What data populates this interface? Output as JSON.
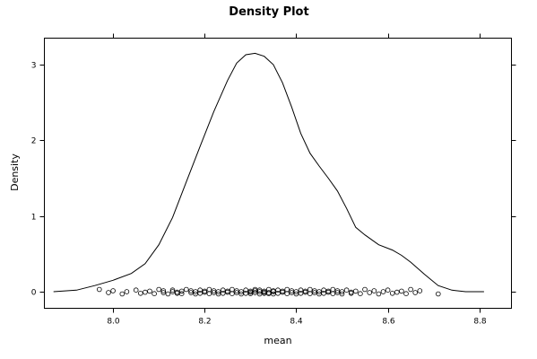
{
  "chart_data": {
    "type": "line",
    "title": "Density Plot",
    "xlabel": "mean",
    "ylabel": "Density",
    "xlim": [
      7.85,
      8.87
    ],
    "ylim": [
      -0.22,
      3.35
    ],
    "x_ticks": [
      8.0,
      8.2,
      8.4,
      8.6,
      8.8
    ],
    "x_tick_labels": [
      "8.0",
      "8.2",
      "8.4",
      "8.6",
      "8.8"
    ],
    "y_ticks": [
      0,
      1,
      2,
      3
    ],
    "y_tick_labels": [
      "0",
      "1",
      "2",
      "3"
    ],
    "grid": false,
    "series": [
      {
        "x": [
          7.87,
          7.92,
          7.96,
          8.0,
          8.04,
          8.07,
          8.1,
          8.13,
          8.16,
          8.19,
          8.22,
          8.25,
          8.27,
          8.29,
          8.31,
          8.33,
          8.35,
          8.37,
          8.39,
          8.41,
          8.43,
          8.45,
          8.47,
          8.49,
          8.51,
          8.53,
          8.55,
          8.58,
          8.61,
          8.63,
          8.65,
          8.68,
          8.71,
          8.74,
          8.77,
          8.81
        ],
        "y": [
          0.0,
          0.02,
          0.08,
          0.15,
          0.24,
          0.37,
          0.62,
          0.98,
          1.45,
          1.92,
          2.38,
          2.79,
          3.02,
          3.13,
          3.15,
          3.11,
          3.0,
          2.76,
          2.44,
          2.09,
          1.83,
          1.66,
          1.5,
          1.33,
          1.1,
          0.85,
          0.75,
          0.62,
          0.55,
          0.48,
          0.39,
          0.23,
          0.08,
          0.02,
          0.0,
          0.0
        ]
      }
    ],
    "rug_points": [
      7.97,
      7.99,
      8.0,
      8.02,
      8.03,
      8.05,
      8.06,
      8.07,
      8.08,
      8.09,
      8.1,
      8.11,
      8.11,
      8.12,
      8.13,
      8.13,
      8.14,
      8.14,
      8.15,
      8.15,
      8.16,
      8.17,
      8.17,
      8.18,
      8.18,
      8.19,
      8.19,
      8.2,
      8.2,
      8.21,
      8.21,
      8.22,
      8.22,
      8.23,
      8.23,
      8.24,
      8.24,
      8.25,
      8.25,
      8.26,
      8.26,
      8.27,
      8.27,
      8.28,
      8.28,
      8.29,
      8.29,
      8.3,
      8.3,
      8.3,
      8.31,
      8.31,
      8.31,
      8.32,
      8.32,
      8.32,
      8.33,
      8.33,
      8.33,
      8.34,
      8.34,
      8.34,
      8.35,
      8.35,
      8.35,
      8.36,
      8.36,
      8.37,
      8.37,
      8.38,
      8.38,
      8.39,
      8.39,
      8.4,
      8.4,
      8.41,
      8.41,
      8.42,
      8.42,
      8.43,
      8.43,
      8.44,
      8.44,
      8.45,
      8.45,
      8.46,
      8.46,
      8.47,
      8.47,
      8.48,
      8.48,
      8.49,
      8.49,
      8.5,
      8.5,
      8.51,
      8.52,
      8.52,
      8.53,
      8.54,
      8.55,
      8.56,
      8.57,
      8.58,
      8.59,
      8.6,
      8.61,
      8.62,
      8.63,
      8.64,
      8.65,
      8.66,
      8.67,
      8.71
    ]
  }
}
